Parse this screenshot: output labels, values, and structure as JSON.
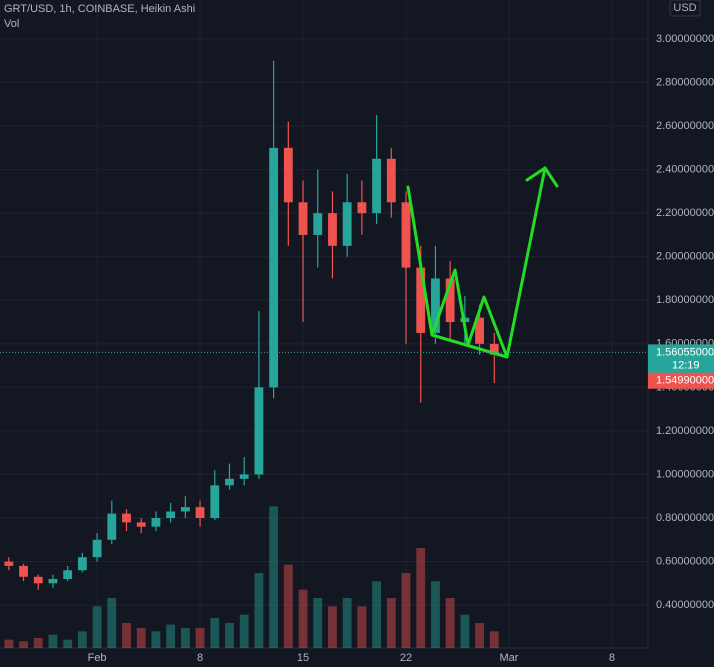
{
  "chart_data": {
    "type": "candlestick",
    "title": "GRT/USD, 1h, COINBASE, Heikin Ashi",
    "volume_label": "Vol",
    "currency": "USD",
    "x": [
      -5,
      -4,
      -3,
      -2,
      -1,
      0,
      1,
      2,
      3,
      4,
      5,
      6,
      7,
      8,
      9,
      10,
      11,
      12,
      13,
      14,
      15,
      16,
      17,
      18,
      19,
      20,
      21,
      22,
      23,
      24,
      25,
      26,
      27,
      28
    ],
    "open": [
      0.6,
      0.58,
      0.53,
      0.5,
      0.52,
      0.56,
      0.62,
      0.7,
      0.82,
      0.78,
      0.76,
      0.8,
      0.83,
      0.85,
      0.8,
      0.95,
      0.98,
      1.0,
      1.4,
      2.5,
      2.25,
      2.1,
      2.2,
      2.05,
      2.25,
      2.2,
      2.45,
      2.25,
      1.95,
      1.65,
      1.9,
      1.7,
      1.72,
      1.6
    ],
    "high": [
      0.62,
      0.59,
      0.54,
      0.54,
      0.58,
      0.64,
      0.73,
      0.88,
      0.84,
      0.8,
      0.83,
      0.87,
      0.9,
      0.88,
      1.02,
      1.05,
      1.08,
      1.75,
      2.9,
      2.62,
      2.35,
      2.4,
      2.3,
      2.38,
      2.35,
      2.65,
      2.5,
      2.3,
      2.05,
      2.05,
      1.98,
      1.82,
      1.78,
      1.65
    ],
    "low": [
      0.56,
      0.51,
      0.47,
      0.48,
      0.51,
      0.55,
      0.6,
      0.68,
      0.74,
      0.73,
      0.74,
      0.78,
      0.8,
      0.76,
      0.79,
      0.93,
      0.95,
      0.98,
      1.35,
      2.05,
      1.7,
      1.95,
      1.9,
      2.0,
      2.1,
      2.15,
      2.18,
      1.6,
      1.33,
      1.6,
      1.62,
      1.6,
      1.55,
      1.42
    ],
    "close": [
      0.58,
      0.53,
      0.5,
      0.52,
      0.56,
      0.62,
      0.7,
      0.82,
      0.78,
      0.76,
      0.8,
      0.83,
      0.85,
      0.8,
      0.95,
      0.98,
      1.0,
      1.4,
      2.5,
      2.25,
      2.1,
      2.2,
      2.05,
      2.25,
      2.2,
      2.45,
      2.25,
      1.95,
      1.65,
      1.9,
      1.7,
      1.72,
      1.6,
      1.55
    ],
    "volume": [
      5,
      4,
      6,
      8,
      5,
      10,
      25,
      30,
      15,
      12,
      10,
      14,
      12,
      12,
      18,
      15,
      20,
      45,
      85,
      50,
      35,
      30,
      25,
      30,
      25,
      40,
      30,
      45,
      60,
      40,
      30,
      20,
      15,
      10
    ],
    "vlim": [
      0,
      120
    ],
    "up_color": "#26a69a",
    "down_color": "#ef5350",
    "xlim": [
      -5.6,
      38.45
    ],
    "xticks": [
      {
        "value": 1,
        "label": "Feb"
      },
      8,
      15,
      22,
      {
        "value": 29,
        "label": "Mar"
      },
      {
        "value": 36,
        "label": "8"
      }
    ],
    "ylim": [
      0.203,
      3.179
    ],
    "yticks": [
      {
        "value": 0.4,
        "label": "0.40000000"
      },
      {
        "value": 0.6,
        "label": "0.60000000"
      },
      {
        "value": 0.8,
        "label": "0.80000000"
      },
      {
        "value": 1.0,
        "label": "1.00000000"
      },
      {
        "value": 1.2,
        "label": "1.20000000"
      },
      {
        "value": 1.4,
        "label": "1.40000000"
      },
      {
        "value": 1.6,
        "label": "1.60000000"
      },
      {
        "value": 1.8,
        "label": "1.80000000"
      },
      {
        "value": 2.0,
        "label": "2.00000000"
      },
      {
        "value": 2.2,
        "label": "2.20000000"
      },
      {
        "value": 2.4,
        "label": "2.40000000"
      },
      {
        "value": 2.6,
        "label": "2.60000000"
      },
      {
        "value": 2.8,
        "label": "2.80000000"
      },
      {
        "value": 3.0,
        "label": "3.00000000"
      }
    ],
    "grid": true,
    "last_price": {
      "value": 1.56055,
      "label": "1.56055000"
    },
    "countdown": "12:19",
    "bid_price": {
      "value": 1.5499,
      "label": "1.54990000"
    }
  }
}
